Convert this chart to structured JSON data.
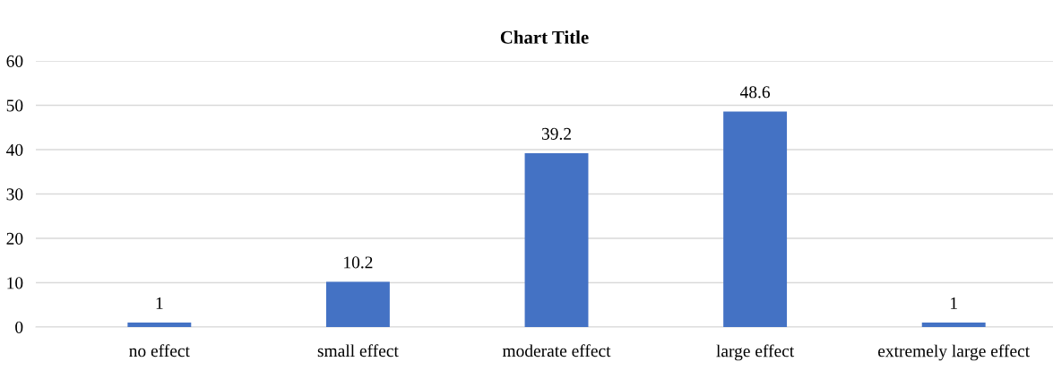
{
  "chart_data": {
    "type": "bar",
    "title": "Chart Title",
    "categories": [
      "no effect",
      "small effect",
      "moderate effect",
      "large effect",
      "extremely large effect"
    ],
    "values": [
      1,
      10.2,
      39.2,
      48.6,
      1
    ],
    "color": "#4472c4",
    "data_labels": true,
    "ylim": [
      0,
      60
    ],
    "yticks": [
      0,
      10,
      20,
      30,
      40,
      50,
      60
    ],
    "grid": "y",
    "legend": false
  }
}
